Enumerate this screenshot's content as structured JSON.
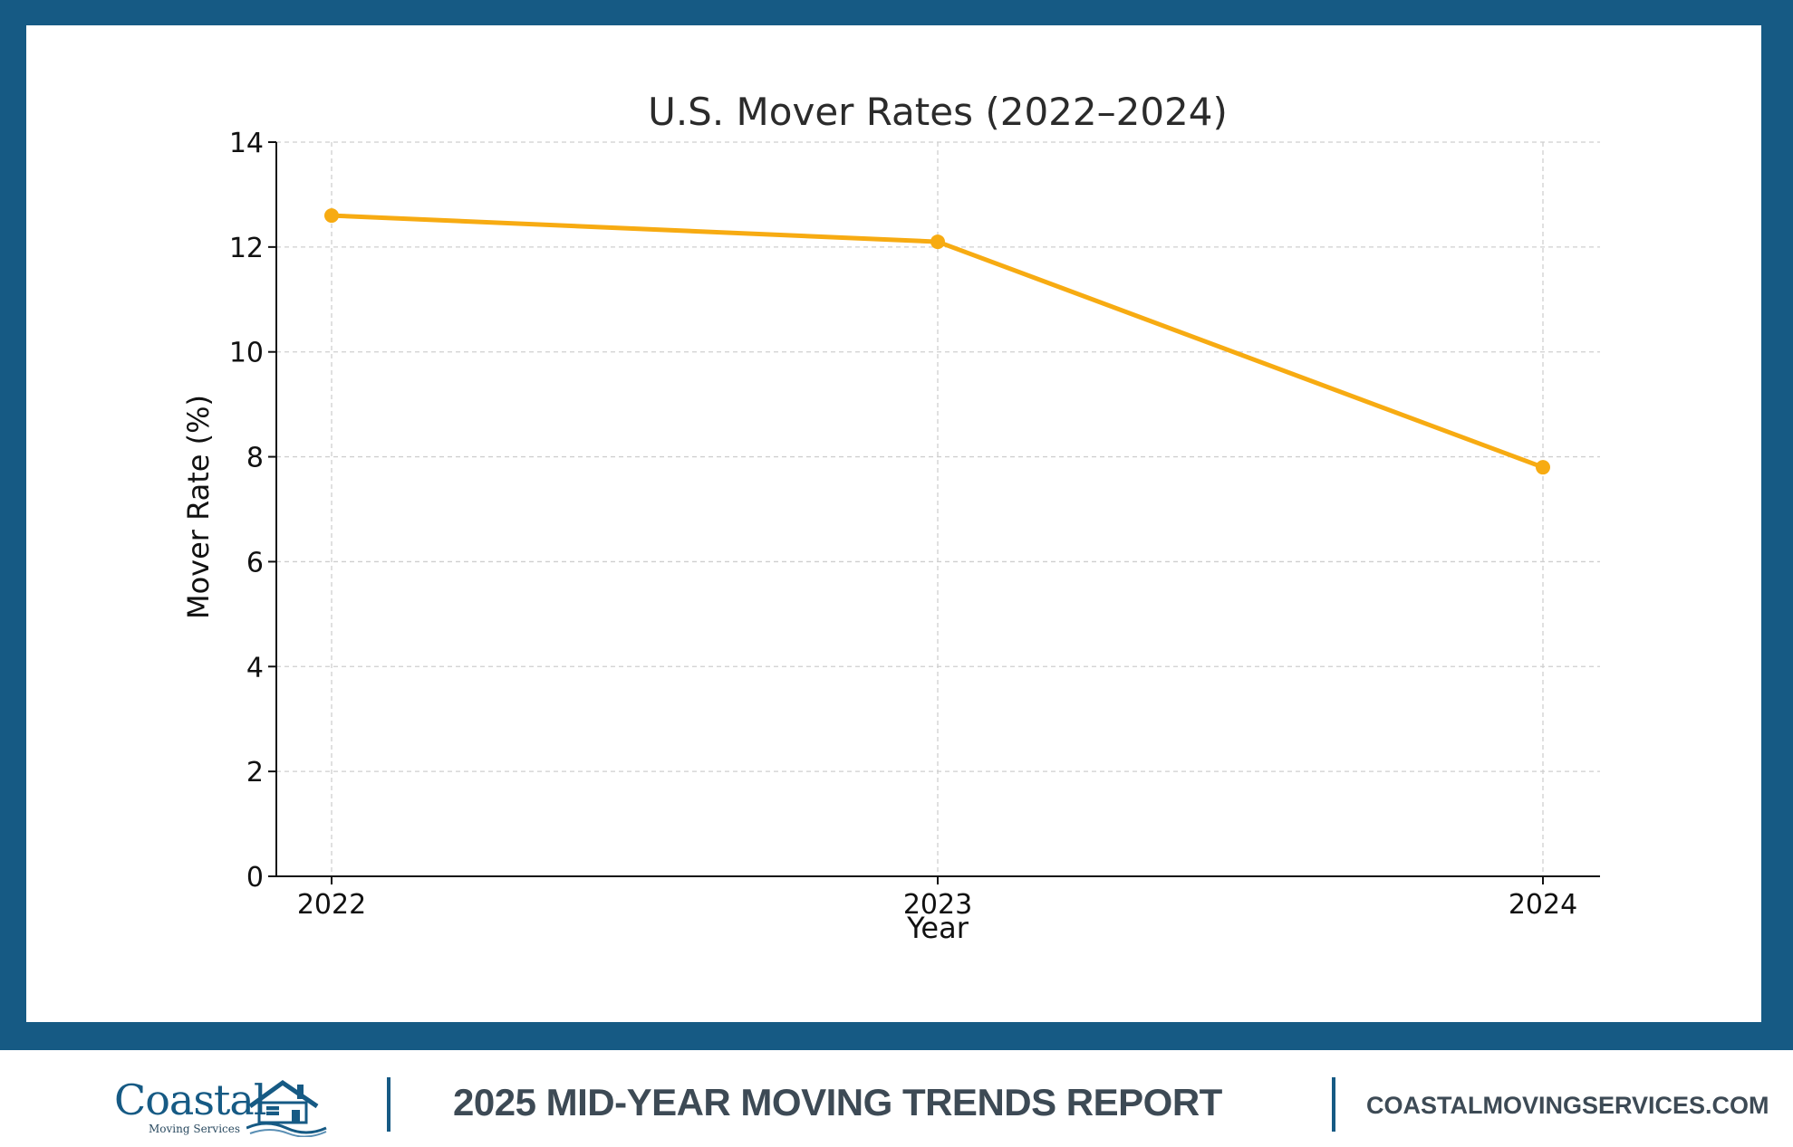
{
  "colors": {
    "frame": "#165a84",
    "series": "#f7ab12",
    "footer_text": "#3d4a55"
  },
  "chart_data": {
    "type": "line",
    "title": "U.S. Mover Rates (2022–2024)",
    "xlabel": "Year",
    "ylabel": "Mover Rate (%)",
    "categories": [
      "2022",
      "2023",
      "2024"
    ],
    "series": [
      {
        "values": [
          12.6,
          12.1,
          7.8
        ]
      }
    ],
    "ylim": [
      0,
      14
    ],
    "yticks": [
      0,
      2,
      4,
      6,
      8,
      10,
      12,
      14
    ],
    "grid": true,
    "markers": "circle"
  },
  "footer": {
    "logo_word": "Coastal",
    "logo_sub": "Moving Services",
    "logo_icon": "house-wave-icon",
    "report_title": "2025 MID-YEAR MOVING TRENDS REPORT",
    "website": "COASTALMOVINGSERVICES.COM"
  }
}
